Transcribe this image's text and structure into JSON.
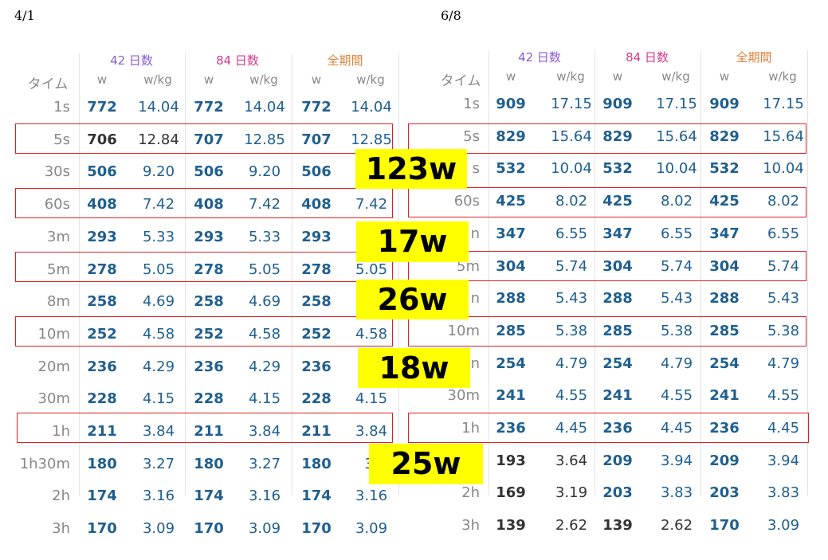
{
  "dates": {
    "left": "4/1",
    "right": "6/8"
  },
  "header": {
    "time": "タイム",
    "groups": [
      {
        "label": "42 日数",
        "color": "#8a5cd6"
      },
      {
        "label": "84 日数",
        "color": "#d23a8e"
      },
      {
        "label": "全期間",
        "color": "#e0823c"
      }
    ],
    "w": "w",
    "wkg": "w/kg"
  },
  "left": {
    "rows": [
      {
        "t": "1s",
        "a": [
          "772",
          "14.04"
        ],
        "b": [
          "772",
          "14.04"
        ],
        "c": [
          "772",
          "14.04"
        ]
      },
      {
        "t": "5s",
        "a": [
          "706",
          "12.84"
        ],
        "b": [
          "707",
          "12.85"
        ],
        "c": [
          "707",
          "12.85"
        ]
      },
      {
        "t": "30s",
        "a": [
          "506",
          "9.20"
        ],
        "b": [
          "506",
          "9.20"
        ],
        "c": [
          "506",
          ""
        ]
      },
      {
        "t": "60s",
        "a": [
          "408",
          "7.42"
        ],
        "b": [
          "408",
          "7.42"
        ],
        "c": [
          "408",
          "7.42"
        ]
      },
      {
        "t": "3m",
        "a": [
          "293",
          "5.33"
        ],
        "b": [
          "293",
          "5.33"
        ],
        "c": [
          "293",
          ""
        ]
      },
      {
        "t": "5m",
        "a": [
          "278",
          "5.05"
        ],
        "b": [
          "278",
          "5.05"
        ],
        "c": [
          "278",
          "5.05"
        ]
      },
      {
        "t": "8m",
        "a": [
          "258",
          "4.69"
        ],
        "b": [
          "258",
          "4.69"
        ],
        "c": [
          "258",
          ""
        ]
      },
      {
        "t": "10m",
        "a": [
          "252",
          "4.58"
        ],
        "b": [
          "252",
          "4.58"
        ],
        "c": [
          "252",
          "4.58"
        ]
      },
      {
        "t": "20m",
        "a": [
          "236",
          "4.29"
        ],
        "b": [
          "236",
          "4.29"
        ],
        "c": [
          "236",
          ""
        ]
      },
      {
        "t": "30m",
        "a": [
          "228",
          "4.15"
        ],
        "b": [
          "228",
          "4.15"
        ],
        "c": [
          "228",
          "4.15"
        ]
      },
      {
        "t": "1h",
        "a": [
          "211",
          "3.84"
        ],
        "b": [
          "211",
          "3.84"
        ],
        "c": [
          "211",
          "3.84"
        ]
      },
      {
        "t": "1h30m",
        "a": [
          "180",
          "3.27"
        ],
        "b": [
          "180",
          "3.27"
        ],
        "c": [
          "180",
          "3."
        ]
      },
      {
        "t": "2h",
        "a": [
          "174",
          "3.16"
        ],
        "b": [
          "174",
          "3.16"
        ],
        "c": [
          "174",
          "3.16"
        ]
      },
      {
        "t": "3h",
        "a": [
          "170",
          "3.09"
        ],
        "b": [
          "170",
          "3.09"
        ],
        "c": [
          "170",
          "3.09"
        ]
      }
    ]
  },
  "right": {
    "rows": [
      {
        "t": "1s",
        "a": [
          "909",
          "17.15"
        ],
        "b": [
          "909",
          "17.15"
        ],
        "c": [
          "909",
          "17.15"
        ]
      },
      {
        "t": "5s",
        "a": [
          "829",
          "15.64"
        ],
        "b": [
          "829",
          "15.64"
        ],
        "c": [
          "829",
          "15.64"
        ]
      },
      {
        "t": "s",
        "a": [
          "532",
          "10.04"
        ],
        "b": [
          "532",
          "10.04"
        ],
        "c": [
          "532",
          "10.04"
        ]
      },
      {
        "t": "60s",
        "a": [
          "425",
          "8.02"
        ],
        "b": [
          "425",
          "8.02"
        ],
        "c": [
          "425",
          "8.02"
        ]
      },
      {
        "t": "n",
        "a": [
          "347",
          "6.55"
        ],
        "b": [
          "347",
          "6.55"
        ],
        "c": [
          "347",
          "6.55"
        ]
      },
      {
        "t": "5m",
        "a": [
          "304",
          "5.74"
        ],
        "b": [
          "304",
          "5.74"
        ],
        "c": [
          "304",
          "5.74"
        ]
      },
      {
        "t": "n",
        "a": [
          "288",
          "5.43"
        ],
        "b": [
          "288",
          "5.43"
        ],
        "c": [
          "288",
          "5.43"
        ]
      },
      {
        "t": "10m",
        "a": [
          "285",
          "5.38"
        ],
        "b": [
          "285",
          "5.38"
        ],
        "c": [
          "285",
          "5.38"
        ]
      },
      {
        "t": "n",
        "a": [
          "254",
          "4.79"
        ],
        "b": [
          "254",
          "4.79"
        ],
        "c": [
          "254",
          "4.79"
        ]
      },
      {
        "t": "30m",
        "a": [
          "241",
          "4.55"
        ],
        "b": [
          "241",
          "4.55"
        ],
        "c": [
          "241",
          "4.55"
        ]
      },
      {
        "t": "1h",
        "a": [
          "236",
          "4.45"
        ],
        "b": [
          "236",
          "4.45"
        ],
        "c": [
          "236",
          "4.45"
        ]
      },
      {
        "t": "",
        "a": [
          "193",
          "3.64"
        ],
        "b": [
          "209",
          "3.94"
        ],
        "c": [
          "209",
          "3.94"
        ]
      },
      {
        "t": "2h",
        "a": [
          "169",
          "3.19"
        ],
        "b": [
          "203",
          "3.83"
        ],
        "c": [
          "203",
          "3.83"
        ]
      },
      {
        "t": "3h",
        "a": [
          "139",
          "2.62"
        ],
        "b": [
          "139",
          "2.62"
        ],
        "c": [
          "170",
          "3.09"
        ]
      }
    ],
    "gray_rows_a": [
      11,
      12,
      13
    ],
    "gray_rows_b": [
      13
    ]
  },
  "badges": [
    "123w",
    "17w",
    "26w",
    "18w",
    "25w"
  ]
}
